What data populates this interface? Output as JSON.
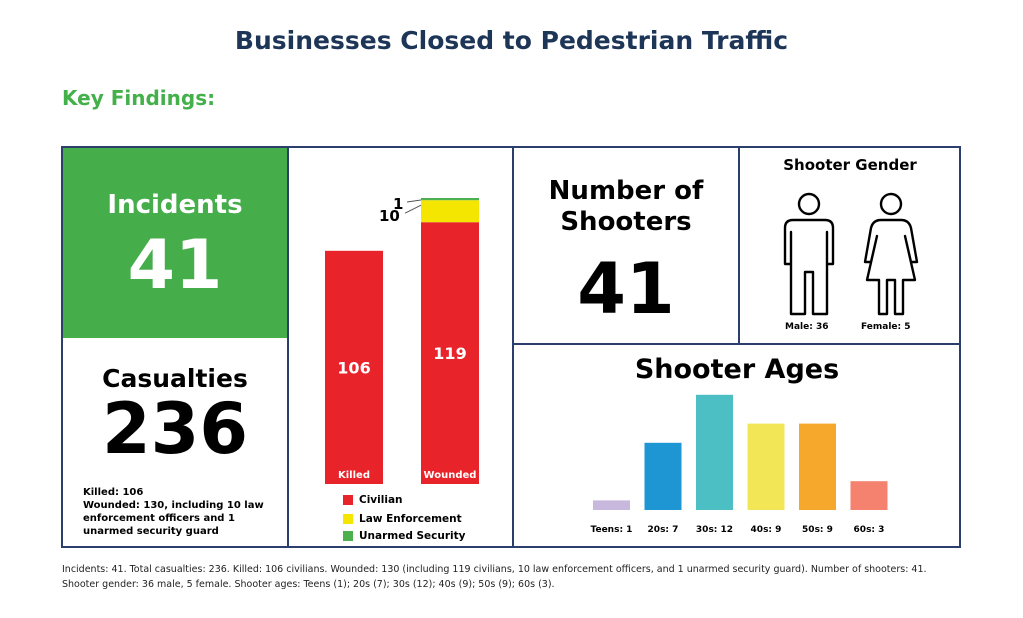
{
  "title": "Businesses Closed to Pedestrian Traffic",
  "subtitle": "Key Findings:",
  "incidents": {
    "label": "Incidents",
    "value": "41"
  },
  "casualties": {
    "label": "Casualties",
    "value": "236",
    "note_killed": "Killed: 106",
    "note_wounded": "Wounded: 130, including 10 law enforcement officers and 1 unarmed security guard"
  },
  "shooters": {
    "label_line1": "Number of",
    "label_line2": "Shooters",
    "value": "41"
  },
  "gender": {
    "label": "Shooter Gender",
    "male": "Male: 36",
    "female": "Female: 5"
  },
  "colors": {
    "civilian": "#e8232a",
    "law": "#f4e600",
    "security": "#4caf50",
    "green": "#45ad4a"
  },
  "chart_data": [
    {
      "type": "bar",
      "stacked": true,
      "categories": [
        "Killed",
        "Wounded"
      ],
      "series": [
        {
          "name": "Civilian",
          "values": [
            106,
            119
          ],
          "color": "#e8232a"
        },
        {
          "name": "Law Enforcement",
          "values": [
            0,
            10
          ],
          "color": "#f4e600"
        },
        {
          "name": "Unarmed Security",
          "values": [
            0,
            1
          ],
          "color": "#4caf50"
        }
      ],
      "data_labels": [
        "106",
        "119",
        "10",
        "1"
      ]
    },
    {
      "type": "bar",
      "title": "Shooter Ages",
      "categories": [
        "Teens: 1",
        "20s: 7",
        "30s: 12",
        "40s: 9",
        "50s: 9",
        "60s: 3"
      ],
      "values": [
        1,
        7,
        12,
        9,
        9,
        3
      ],
      "colors": [
        "#c9b8dd",
        "#1f96d4",
        "#4cbfc4",
        "#f2e657",
        "#f5a82c",
        "#f4826e"
      ]
    }
  ],
  "footer": "Incidents: 41. Total casualties: 236. Killed: 106 civilians. Wounded: 130 (including 119 civilians, 10 law enforcement officers, and 1 unarmed security guard). Number of shooters: 41. Shooter gender: 36 male, 5 female. Shooter ages: Teens (1); 20s (7); 30s (12); 40s (9); 50s (9); 60s (3)."
}
